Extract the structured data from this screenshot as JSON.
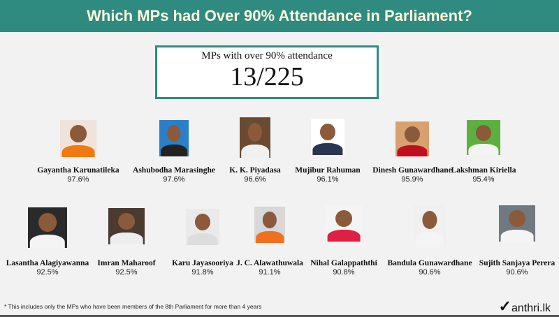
{
  "header": {
    "title": "Which MPs had Over 90% Attendance in Parliament?"
  },
  "stat": {
    "label": "MPs with over 90% attendance",
    "value": "13/225"
  },
  "colors": {
    "accent": "#2f8a80"
  },
  "mps": [
    {
      "name": "Gayantha  Karunatileka",
      "pct": "97.6%",
      "bg": "#f1e3da",
      "shirt": "#f07a10"
    },
    {
      "name": "Ashubodha Marasinghe",
      "pct": "97.6%",
      "bg": "#2a7fc8",
      "shirt": "#222"
    },
    {
      "name": "K. K. Piyadasa",
      "pct": "96.6%",
      "bg": "#6a4a30",
      "shirt": "#f0f0f0"
    },
    {
      "name": "Mujibur Rahuman",
      "pct": "96.1%",
      "bg": "#ffffff",
      "shirt": "#2c3550"
    },
    {
      "name": "Dinesh Gunawardhane",
      "pct": "95.9%",
      "bg": "#d9a070",
      "shirt": "#c01020"
    },
    {
      "name": "Lakshman Kiriella",
      "pct": "95.4%",
      "bg": "#5cb040",
      "shirt": "#f4f4f4"
    },
    {
      "name": "Lasantha Alagiyawanna",
      "pct": "92.5%",
      "bg": "#2a2a2a",
      "shirt": "#f4f4f4"
    },
    {
      "name": "Imran Maharoof",
      "pct": "92.5%",
      "bg": "#4a3a30",
      "shirt": "#eeeeee"
    },
    {
      "name": "Karu Jayasooriya",
      "pct": "91.8%",
      "bg": "#eaeaea",
      "shirt": "#dddddd"
    },
    {
      "name": "J. C. Alawathuwala",
      "pct": "91.1%",
      "bg": "#d8d8d8",
      "shirt": "#f07020"
    },
    {
      "name": "Nihal Galappaththi",
      "pct": "90.8%",
      "bg": "#f4f4f4",
      "shirt": "#e02040"
    },
    {
      "name": "Bandula Gunawardhane",
      "pct": "90.6%",
      "bg": "#f0f0f0",
      "shirt": "#f4f4f4"
    },
    {
      "name": "Sujith Sanjaya Perera",
      "pct": "90.6%",
      "bg": "#707880",
      "shirt": "#f4f4f4"
    }
  ],
  "footer": {
    "note": "* This includes only the MPs who have been members of the 8th Parliament for more than 4 years",
    "logo": "anthri.lk"
  }
}
